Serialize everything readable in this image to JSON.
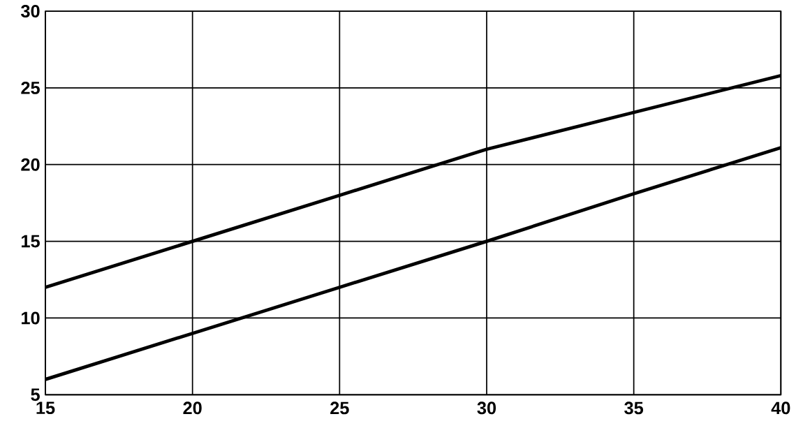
{
  "chart_data": {
    "type": "line",
    "x": [
      15,
      20,
      25,
      30,
      35,
      40
    ],
    "series": [
      {
        "color": "#000000",
        "values": [
          12,
          15,
          18,
          21,
          23.4,
          25.8
        ]
      },
      {
        "color": "#000000",
        "values": [
          6,
          9,
          12,
          15,
          18.1,
          21.1
        ]
      }
    ],
    "xlim": [
      15,
      40
    ],
    "ylim": [
      5,
      30
    ],
    "xticks": [
      15,
      20,
      25,
      30,
      35,
      40
    ],
    "yticks": [
      5,
      10,
      15,
      20,
      25,
      30
    ],
    "grid": true,
    "marker": "none",
    "line_style": "solid"
  }
}
